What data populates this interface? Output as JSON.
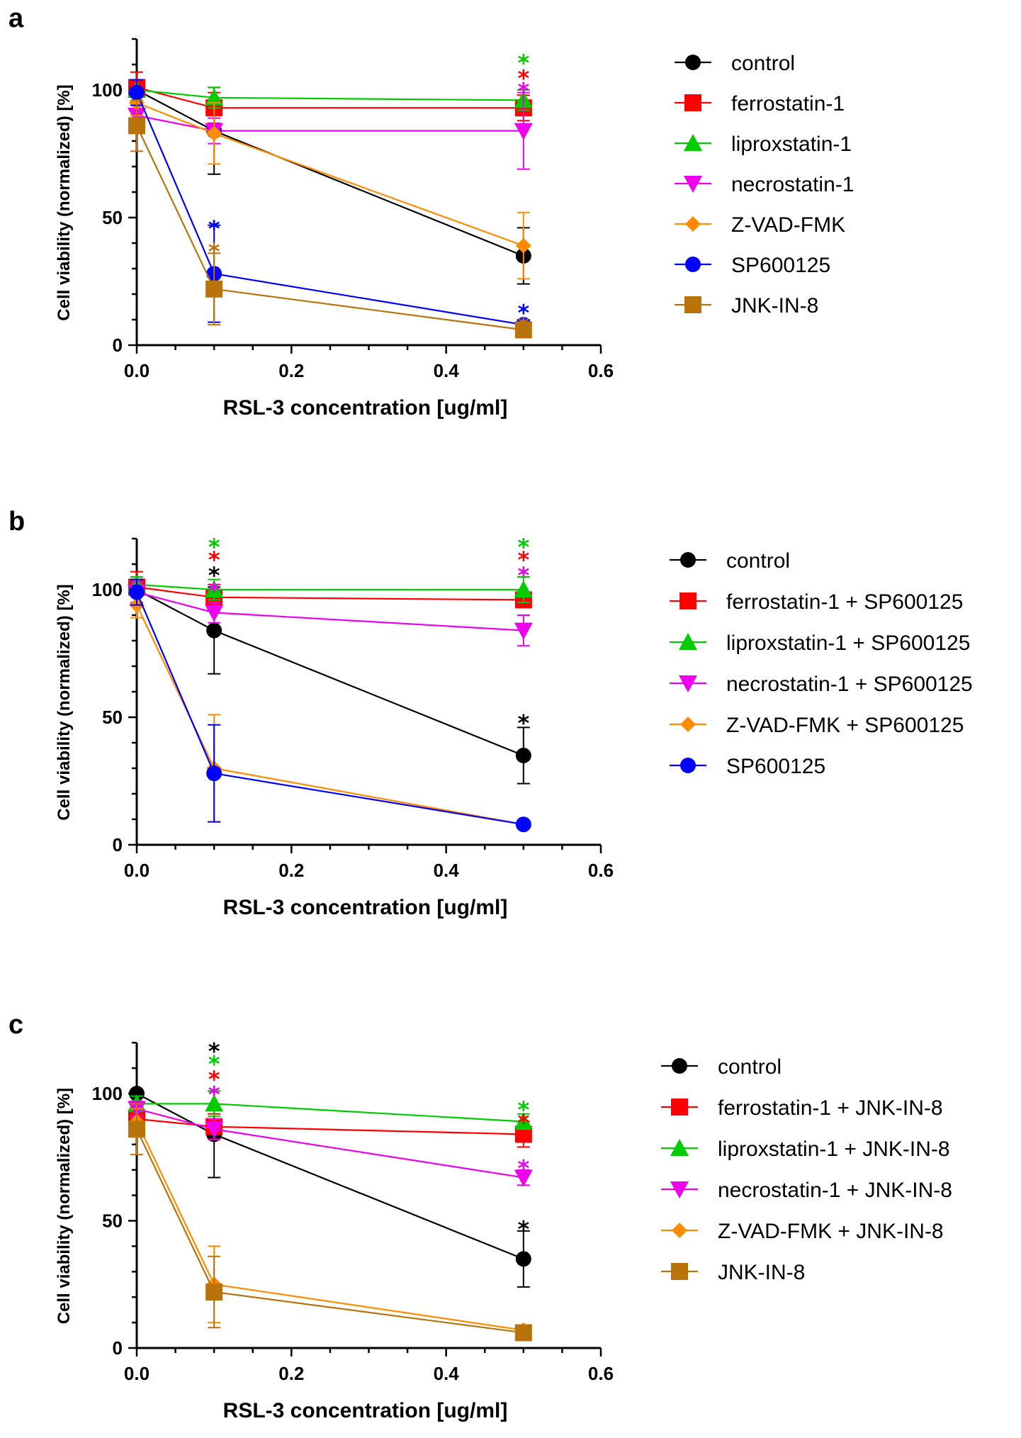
{
  "chart_data": [
    {
      "type": "line",
      "panel": "a",
      "xlabel": "RSL-3 concentration [ug/ml]",
      "ylabel": "Cell viability (normalized) [%]",
      "xlim": [
        0,
        0.6
      ],
      "ylim": [
        0,
        120
      ],
      "x_ticks": [
        "0.0",
        "0.2",
        "0.4",
        "0.6"
      ],
      "y_ticks": [
        "0",
        "50",
        "100"
      ],
      "x": [
        0,
        0.1,
        0.5
      ],
      "series": [
        {
          "name": "control",
          "color": "#000000",
          "marker": "circle",
          "values": [
            100,
            84,
            35
          ],
          "err": [
            0,
            17,
            11
          ]
        },
        {
          "name": "ferrostatin-1",
          "color": "#ff0000",
          "marker": "square",
          "values": [
            101,
            93,
            93
          ],
          "err": [
            6,
            6,
            5
          ]
        },
        {
          "name": "liproxstatin-1",
          "color": "#00cc00",
          "marker": "triangle-up",
          "values": [
            100,
            97,
            96
          ],
          "err": [
            4,
            4,
            4
          ]
        },
        {
          "name": "necrostatin-1",
          "color": "#ee00ee",
          "marker": "triangle-down",
          "values": [
            90,
            84,
            84
          ],
          "err": [
            4,
            5,
            15
          ]
        },
        {
          "name": "Z-VAD-FMK",
          "color": "#ff8c00",
          "marker": "diamond",
          "values": [
            95,
            83,
            39
          ],
          "err": [
            5,
            12,
            13
          ]
        },
        {
          "name": "SP600125",
          "color": "#0000ff",
          "marker": "circle",
          "values": [
            99,
            28,
            8
          ],
          "err": [
            5,
            19,
            2
          ]
        },
        {
          "name": "JNK-IN-8",
          "color": "#b8730a",
          "marker": "square",
          "values": [
            86,
            22,
            6
          ],
          "err": [
            10,
            14,
            2
          ]
        }
      ],
      "annotations": [
        {
          "x": 0.1,
          "y_offset": 47,
          "text": "*",
          "color": "#0000ff"
        },
        {
          "x": 0.1,
          "y_offset": 38,
          "text": "*",
          "color": "#b8730a"
        },
        {
          "x": 0.5,
          "y_offset": 112,
          "text": "*",
          "color": "#00cc00"
        },
        {
          "x": 0.5,
          "y_offset": 106,
          "text": "*",
          "color": "#ff0000"
        },
        {
          "x": 0.5,
          "y_offset": 101,
          "text": "*",
          "color": "#ee00ee"
        },
        {
          "x": 0.5,
          "y_offset": 14,
          "text": "*",
          "color": "#0000ff"
        },
        {
          "x": 0.5,
          "y_offset": 9,
          "text": "*",
          "color": "#b8730a"
        }
      ]
    },
    {
      "type": "line",
      "panel": "b",
      "xlabel": "RSL-3 concentration [ug/ml]",
      "ylabel": "Cell viability (normalized) [%]",
      "xlim": [
        0,
        0.6
      ],
      "ylim": [
        0,
        120
      ],
      "x_ticks": [
        "0.0",
        "0.2",
        "0.4",
        "0.6"
      ],
      "y_ticks": [
        "0",
        "50",
        "100"
      ],
      "x": [
        0,
        0.1,
        0.5
      ],
      "series": [
        {
          "name": "control",
          "color": "#000000",
          "marker": "circle",
          "values": [
            100,
            84,
            35
          ],
          "err": [
            0,
            17,
            11
          ]
        },
        {
          "name": "ferrostatin-1 + SP600125",
          "color": "#ff0000",
          "marker": "square",
          "values": [
            101,
            97,
            96
          ],
          "err": [
            6,
            5,
            3
          ]
        },
        {
          "name": "liproxstatin-1 + SP600125",
          "color": "#00cc00",
          "marker": "triangle-up",
          "values": [
            102,
            100,
            100
          ],
          "err": [
            3,
            4,
            5
          ]
        },
        {
          "name": "necrostatin-1 + SP600125",
          "color": "#ee00ee",
          "marker": "triangle-down",
          "values": [
            99,
            91,
            84
          ],
          "err": [
            4,
            4,
            6
          ]
        },
        {
          "name": "Z-VAD-FMK + SP600125",
          "color": "#ff8c00",
          "marker": "diamond",
          "values": [
            94,
            30,
            8
          ],
          "err": [
            5,
            21,
            1
          ]
        },
        {
          "name": "SP600125",
          "color": "#0000ff",
          "marker": "circle",
          "values": [
            99,
            28,
            8
          ],
          "err": [
            5,
            19,
            1
          ]
        }
      ],
      "annotations": [
        {
          "x": 0.1,
          "y_offset": 118,
          "text": "*",
          "color": "#00cc00"
        },
        {
          "x": 0.1,
          "y_offset": 113,
          "text": "*",
          "color": "#ff0000"
        },
        {
          "x": 0.1,
          "y_offset": 107,
          "text": "*",
          "color": "#000000"
        },
        {
          "x": 0.1,
          "y_offset": 101,
          "text": "*",
          "color": "#ee00ee"
        },
        {
          "x": 0.5,
          "y_offset": 118,
          "text": "*",
          "color": "#00cc00"
        },
        {
          "x": 0.5,
          "y_offset": 113,
          "text": "*",
          "color": "#ff0000"
        },
        {
          "x": 0.5,
          "y_offset": 107,
          "text": "*",
          "color": "#ee00ee"
        },
        {
          "x": 0.5,
          "y_offset": 49,
          "text": "*",
          "color": "#000000"
        }
      ]
    },
    {
      "type": "line",
      "panel": "c",
      "xlabel": "RSL-3 concentration [ug/ml]",
      "ylabel": "Cell viability (normalized) [%]",
      "xlim": [
        0,
        0.6
      ],
      "ylim": [
        0,
        120
      ],
      "x_ticks": [
        "0.0",
        "0.2",
        "0.4",
        "0.6"
      ],
      "y_ticks": [
        "0",
        "50",
        "100"
      ],
      "x": [
        0,
        0.1,
        0.5
      ],
      "series": [
        {
          "name": "control",
          "color": "#000000",
          "marker": "circle",
          "values": [
            100,
            84,
            35
          ],
          "err": [
            0,
            17,
            11
          ]
        },
        {
          "name": "ferrostatin-1 + JNK-IN-8",
          "color": "#ff0000",
          "marker": "square",
          "values": [
            90,
            87,
            84
          ],
          "err": [
            3,
            5,
            5
          ]
        },
        {
          "name": "liproxstatin-1 + JNK-IN-8",
          "color": "#00cc00",
          "marker": "triangle-up",
          "values": [
            96,
            96,
            89
          ],
          "err": [
            3,
            5,
            3
          ]
        },
        {
          "name": "necrostatin-1 + JNK-IN-8",
          "color": "#ee00ee",
          "marker": "triangle-down",
          "values": [
            94,
            86,
            67
          ],
          "err": [
            3,
            4,
            3
          ]
        },
        {
          "name": "Z-VAD-FMK + JNK-IN-8",
          "color": "#ff8c00",
          "marker": "diamond",
          "values": [
            89,
            25,
            7
          ],
          "err": [
            5,
            15,
            1
          ]
        },
        {
          "name": "JNK-IN-8",
          "color": "#b8730a",
          "marker": "square",
          "values": [
            86,
            22,
            6
          ],
          "err": [
            10,
            14,
            1
          ]
        }
      ],
      "annotations": [
        {
          "x": 0.1,
          "y_offset": 118,
          "text": "*",
          "color": "#000000"
        },
        {
          "x": 0.1,
          "y_offset": 113,
          "text": "*",
          "color": "#00cc00"
        },
        {
          "x": 0.1,
          "y_offset": 107,
          "text": "*",
          "color": "#ff0000"
        },
        {
          "x": 0.1,
          "y_offset": 101,
          "text": "*",
          "color": "#ee00ee"
        },
        {
          "x": 0.5,
          "y_offset": 95,
          "text": "*",
          "color": "#00cc00"
        },
        {
          "x": 0.5,
          "y_offset": 90,
          "text": "*",
          "color": "#ff0000"
        },
        {
          "x": 0.5,
          "y_offset": 72,
          "text": "*",
          "color": "#ee00ee"
        },
        {
          "x": 0.5,
          "y_offset": 48,
          "text": "*",
          "color": "#000000"
        }
      ]
    }
  ]
}
